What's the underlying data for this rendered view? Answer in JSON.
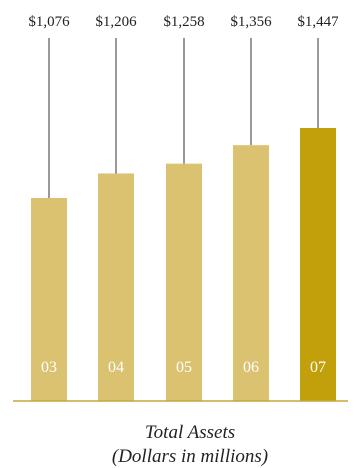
{
  "chart_data": {
    "type": "bar",
    "categories": [
      "03",
      "04",
      "05",
      "06",
      "07"
    ],
    "values": [
      1076,
      1206,
      1258,
      1356,
      1447
    ],
    "value_labels": [
      "$1,076",
      "$1,206",
      "$1,258",
      "$1,356",
      "$1,447"
    ],
    "title": "Total Assets",
    "subtitle": "(Dollars in millions)",
    "xlabel": "",
    "ylabel": "",
    "ylim": [
      0,
      1447
    ],
    "grid": false,
    "legend": "none",
    "highlight_index": 4
  },
  "colors": {
    "bar": "#dbc271",
    "bar_highlight": "#c2a00b",
    "baseline": "#c6a63a",
    "leader_line": "#333333",
    "year_text": "#ffffff"
  }
}
